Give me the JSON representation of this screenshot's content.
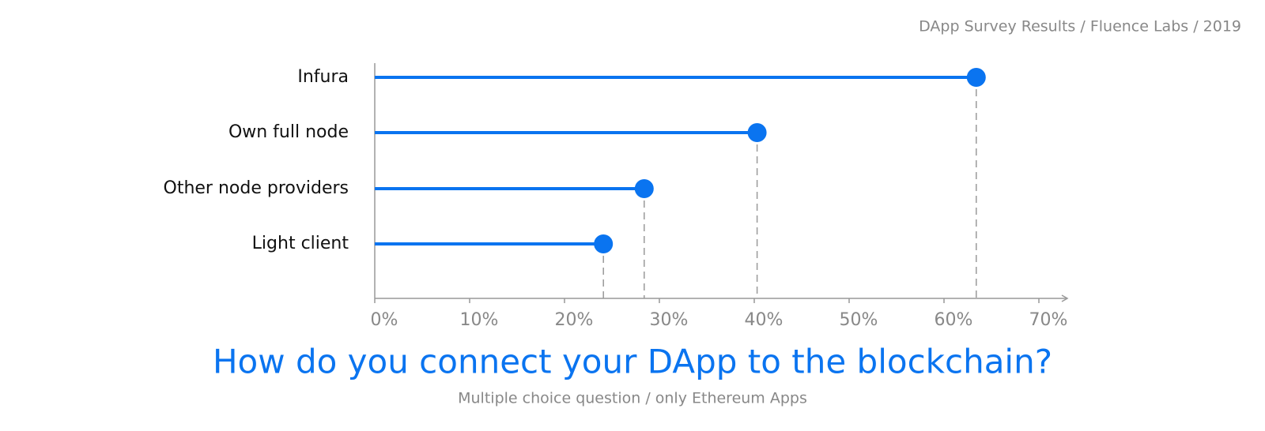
{
  "chart_data": {
    "type": "lollipop",
    "orientation": "horizontal",
    "source": "DApp Survey Results / Fluence Labs / 2019",
    "title": "How do you connect your DApp to the blockchain?",
    "subtitle": "Multiple choice question / only Ethereum Apps",
    "categories": [
      "Infura",
      "Own full node",
      "Other node providers",
      "Light client"
    ],
    "values": [
      63.4,
      40.3,
      28.4,
      24.1
    ],
    "color": "#0a74f0",
    "xlim": [
      0,
      73
    ],
    "xticks": [
      {
        "value": 0,
        "label": "0%"
      },
      {
        "value": 10,
        "label": "10%"
      },
      {
        "value": 20,
        "label": "20%"
      },
      {
        "value": 30,
        "label": "30%"
      },
      {
        "value": 40,
        "label": "40%"
      },
      {
        "value": 50,
        "label": "50%"
      },
      {
        "value": 60,
        "label": "60%"
      },
      {
        "value": 70,
        "label": "70%"
      }
    ]
  }
}
